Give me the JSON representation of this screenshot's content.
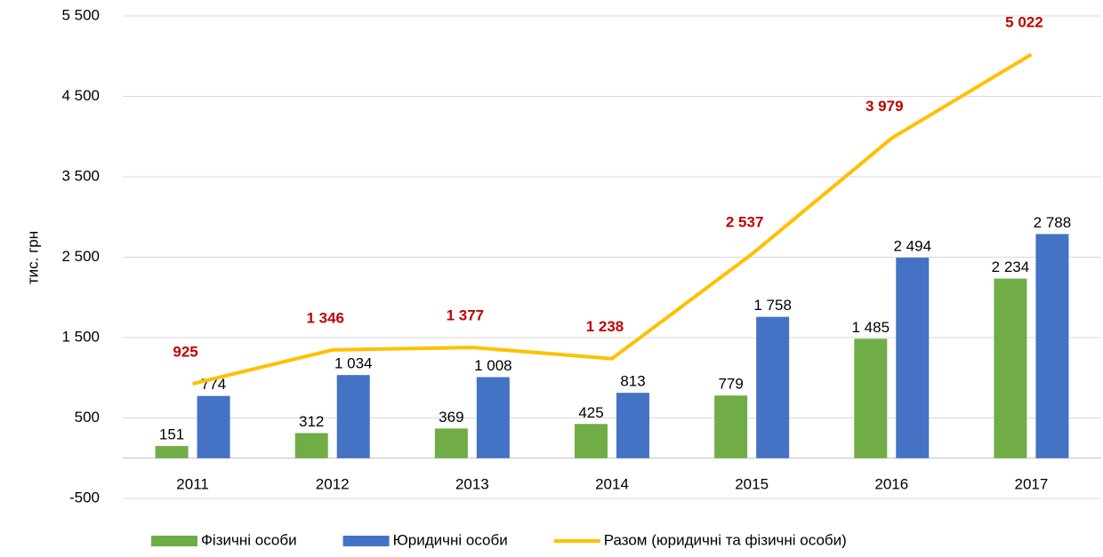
{
  "chart_data": {
    "type": "bar",
    "y_label": "тис. грн",
    "categories": [
      "2011",
      "2012",
      "2013",
      "2014",
      "2015",
      "2016",
      "2017"
    ],
    "series": [
      {
        "name": "Фізичні особи",
        "color": "#70ad47",
        "values": [
          151,
          312,
          369,
          425,
          779,
          1485,
          2234
        ],
        "value_labels": [
          "151",
          "312",
          "369",
          "425",
          "779",
          "1 485",
          "2 234"
        ]
      },
      {
        "name": "Юридичні особи",
        "color": "#4472c4",
        "values": [
          774,
          1034,
          1008,
          813,
          1758,
          2494,
          2788
        ],
        "value_labels": [
          "774",
          "1 034",
          "1 008",
          "813",
          "1 758",
          "2 494",
          "2 788"
        ]
      },
      {
        "name": "Разом (юридичні та фізичні особи)",
        "color": "#ffc000",
        "type": "line",
        "label_color": "#c00000",
        "values": [
          925,
          1346,
          1377,
          1238,
          2537,
          3979,
          5022
        ],
        "value_labels": [
          "925",
          "1 346",
          "1 377",
          "1 238",
          "2 537",
          "3 979",
          "5 022"
        ]
      }
    ],
    "ylim": [
      -500,
      5500
    ],
    "yticks": [
      {
        "value": -500,
        "label": "-500"
      },
      500,
      {
        "value": 1500,
        "label": "1 500"
      },
      {
        "value": 2500,
        "label": "2 500"
      },
      {
        "value": 3500,
        "label": "3 500"
      },
      {
        "value": 4500,
        "label": "4 500"
      },
      {
        "value": 5500,
        "label": "5 500"
      }
    ],
    "grid": true,
    "legend": "bottom"
  }
}
